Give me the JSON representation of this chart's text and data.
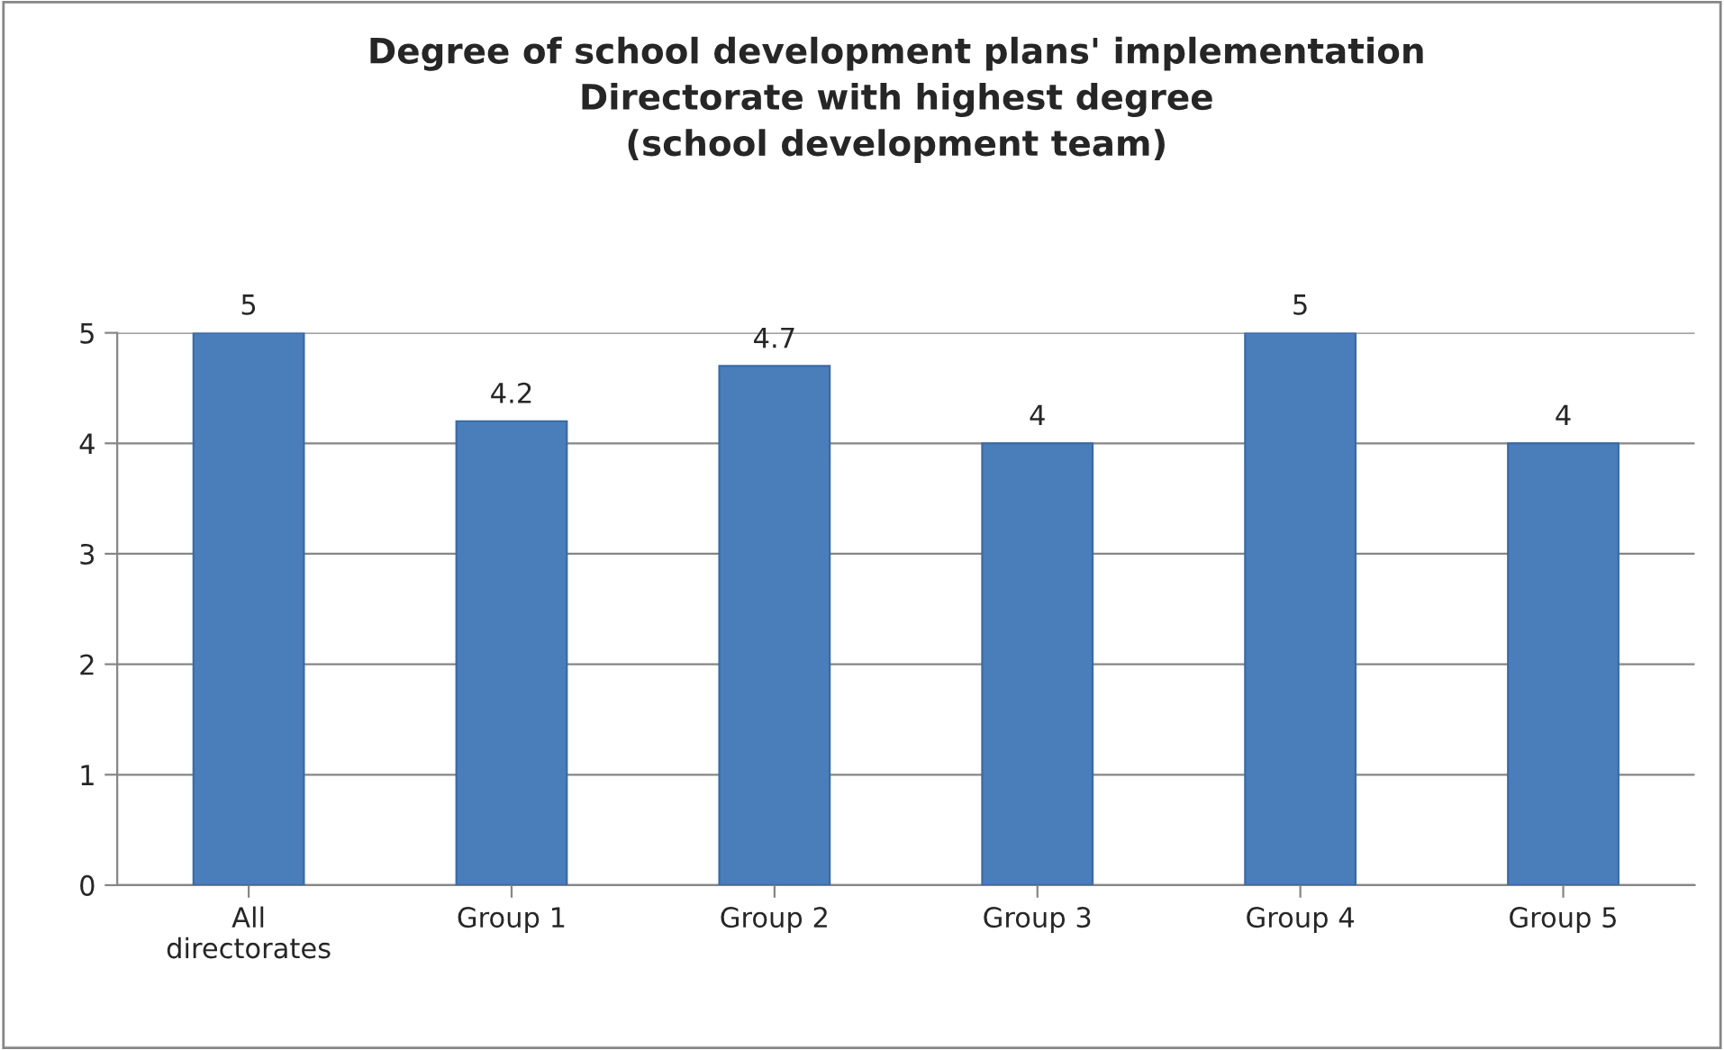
{
  "chart_data": {
    "type": "bar",
    "title": "Degree of school development plans' implementation\nDirectorate with highest degree\n(school development team)",
    "categories": [
      "All\ndirectorates",
      "Group 1",
      "Group 2",
      "Group 3",
      "Group 4",
      "Group 5"
    ],
    "values": [
      5,
      4.2,
      4.7,
      4,
      5,
      4
    ],
    "color": "#4a7ebb",
    "ylim": [
      0,
      5
    ],
    "yticks": [
      0,
      1,
      2,
      3,
      4,
      5
    ],
    "grid": "y",
    "data_labels": true,
    "legend": false
  }
}
